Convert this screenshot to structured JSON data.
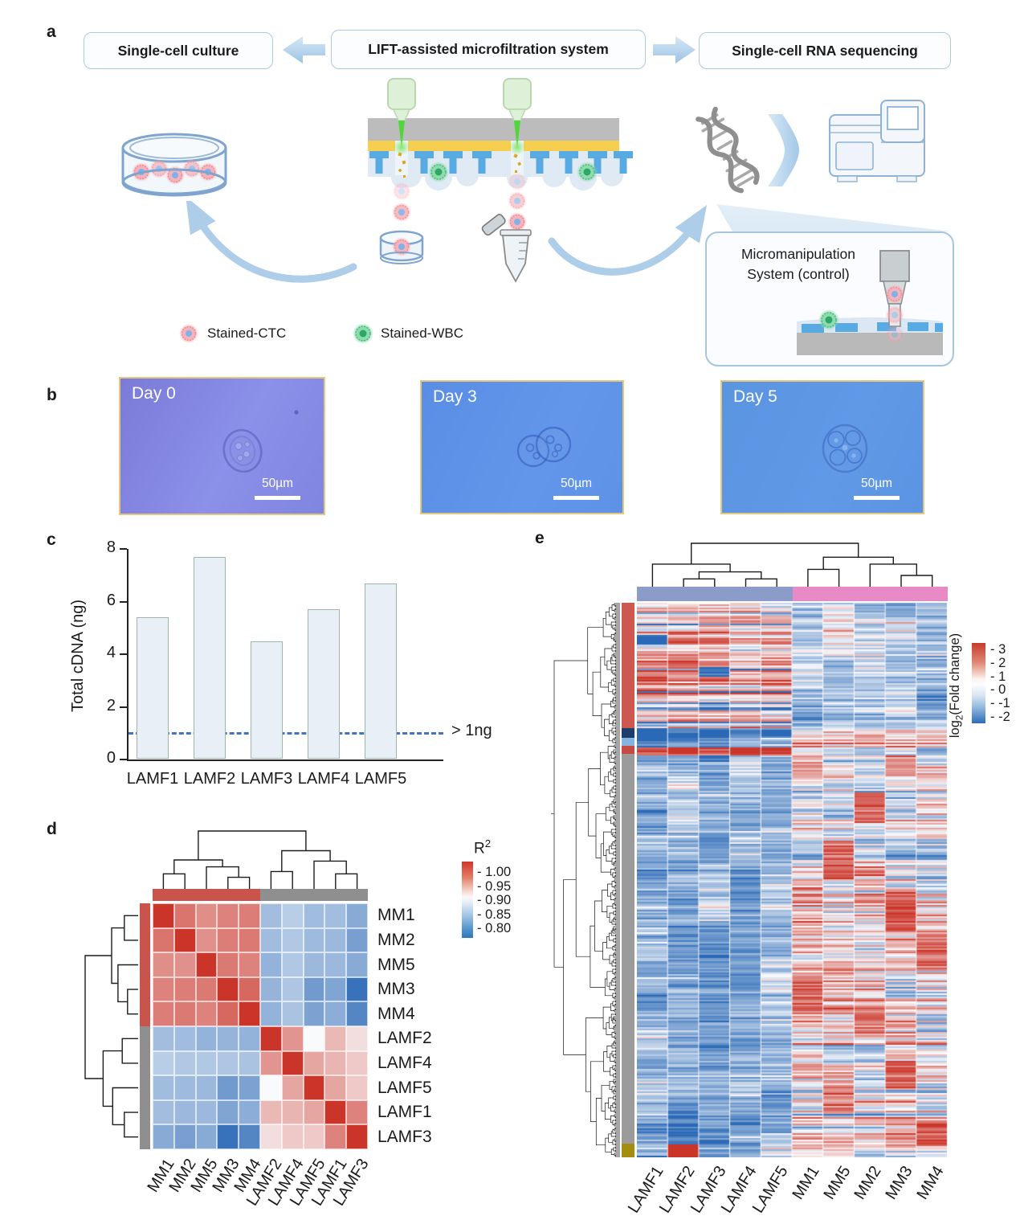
{
  "figure": {
    "panel_labels": {
      "a": "a",
      "b": "b",
      "c": "c",
      "d": "d",
      "e": "e"
    }
  },
  "panel_a": {
    "boxes": [
      "Single-cell culture",
      "LIFT-assisted microfiltration system",
      "Single-cell RNA sequencing"
    ],
    "legend": [
      {
        "label": "Stained-CTC",
        "color": "#f2a0a8"
      },
      {
        "label": "Stained-WBC",
        "color": "#7fd3a2"
      }
    ],
    "inset_title": "Micromanipulation System (control)"
  },
  "panel_b": {
    "images": [
      {
        "label": "Day 0",
        "scalebar": "50µm"
      },
      {
        "label": "Day 3",
        "scalebar": "50µm"
      },
      {
        "label": "Day 5",
        "scalebar": "50µm"
      }
    ]
  },
  "chart_data": [
    {
      "panel": "c",
      "type": "bar",
      "categories": [
        "LAMF1",
        "LAMF2",
        "LAMF3",
        "LAMF4",
        "LAMF5"
      ],
      "values": [
        5.4,
        7.7,
        4.5,
        5.7,
        6.7
      ],
      "ylabel": "Total cDNA (ng)",
      "ylim": [
        0,
        8
      ],
      "yticks": [
        "0",
        "2",
        "4",
        "6",
        "8"
      ],
      "threshold_value": 1,
      "threshold_label": "> 1ng",
      "bar_fill": "#e9eff7",
      "bar_stroke": "#9fb7a9",
      "threshold_color": "#4472c4"
    },
    {
      "panel": "d",
      "type": "heatmap",
      "title": "Sample-sample correlation",
      "rows": [
        "MM1",
        "MM2",
        "MM5",
        "MM3",
        "MM4",
        "LAMF2",
        "LAMF4",
        "LAMF5",
        "LAMF1",
        "LAMF3"
      ],
      "cols": [
        "MM1",
        "MM2",
        "MM5",
        "MM3",
        "MM4",
        "LAMF2",
        "LAMF4",
        "LAMF5",
        "LAMF1",
        "LAMF3"
      ],
      "matrix": [
        [
          1.0,
          0.965,
          0.952,
          0.958,
          0.96,
          0.853,
          0.866,
          0.852,
          0.853,
          0.838
        ],
        [
          0.965,
          1.0,
          0.95,
          0.96,
          0.962,
          0.852,
          0.862,
          0.851,
          0.85,
          0.828
        ],
        [
          0.952,
          0.95,
          1.0,
          0.962,
          0.958,
          0.845,
          0.862,
          0.85,
          0.85,
          0.838
        ],
        [
          0.958,
          0.96,
          0.962,
          1.0,
          0.972,
          0.846,
          0.86,
          0.824,
          0.833,
          0.788
        ],
        [
          0.96,
          0.962,
          0.958,
          0.972,
          1.0,
          0.845,
          0.858,
          0.83,
          0.84,
          0.806
        ],
        [
          0.853,
          0.852,
          0.845,
          0.846,
          0.845,
          1.0,
          0.948,
          0.9,
          0.93,
          0.912
        ],
        [
          0.866,
          0.862,
          0.862,
          0.86,
          0.858,
          0.948,
          1.0,
          0.94,
          0.932,
          0.922
        ],
        [
          0.852,
          0.851,
          0.85,
          0.824,
          0.83,
          0.9,
          0.94,
          1.0,
          0.94,
          0.922
        ],
        [
          0.853,
          0.85,
          0.85,
          0.833,
          0.84,
          0.93,
          0.932,
          0.94,
          1.0,
          0.958
        ],
        [
          0.838,
          0.828,
          0.838,
          0.788,
          0.806,
          0.912,
          0.922,
          0.922,
          0.958,
          1.0
        ]
      ],
      "col_groups": [
        {
          "name": "MM",
          "color": "#c9544c",
          "span": 5
        },
        {
          "name": "LAMF",
          "color": "#8f8f8f",
          "span": 5
        }
      ],
      "row_groups": [
        {
          "name": "MM",
          "color": "#c9544c",
          "span": 5
        },
        {
          "name": "LAMF",
          "color": "#8f8f8f",
          "span": 5
        }
      ],
      "legend": {
        "label_base": "R",
        "label_sup": "2",
        "ticks": [
          "1.00",
          "0.95",
          "0.90",
          "0.85",
          "0.80"
        ]
      },
      "col_tree": {
        "h": 1,
        "c": [
          {
            "h": 0.5,
            "c": [
              {
                "h": 0.26,
                "c": [
                  0,
                  1
                ]
              },
              {
                "h": 0.38,
                "c": [
                  2,
                  {
                    "h": 0.2,
                    "c": [
                      3,
                      4
                    ]
                  }
                ]
              }
            ]
          },
          {
            "h": 0.66,
            "c": [
              {
                "h": 0.3,
                "c": [
                  5,
                  6
                ]
              },
              {
                "h": 0.48,
                "c": [
                  7,
                  {
                    "h": 0.26,
                    "c": [
                      8,
                      9
                    ]
                  }
                ]
              }
            ]
          }
        ]
      },
      "row_tree": {
        "h": 1,
        "c": [
          {
            "h": 0.5,
            "c": [
              {
                "h": 0.26,
                "c": [
                  0,
                  1
                ]
              },
              {
                "h": 0.38,
                "c": [
                  2,
                  {
                    "h": 0.2,
                    "c": [
                      3,
                      4
                    ]
                  }
                ]
              }
            ]
          },
          {
            "h": 0.66,
            "c": [
              {
                "h": 0.3,
                "c": [
                  5,
                  6
                ]
              },
              {
                "h": 0.48,
                "c": [
                  7,
                  {
                    "h": 0.26,
                    "c": [
                      8,
                      9
                    ]
                  }
                ]
              }
            ]
          }
        ]
      }
    },
    {
      "panel": "e",
      "type": "heatmap",
      "title": "Differential expression, log2 fold change",
      "cols": [
        "LAMF1",
        "LAMF2",
        "LAMF3",
        "LAMF4",
        "LAMF5",
        "MM1",
        "MM5",
        "MM2",
        "MM3",
        "MM4"
      ],
      "n_rows": 345,
      "col_groups": [
        {
          "name": "LAMF",
          "color": "#8c9cca",
          "span": 5
        },
        {
          "name": "MM",
          "color": "#e78ac5",
          "span": 5
        }
      ],
      "legend": {
        "label_base": "log",
        "label_sub": "2",
        "label_rest": "(Fold change)",
        "ticks": [
          "3",
          "2",
          "1",
          "0",
          "-1",
          "-2"
        ],
        "range": [
          3.5,
          -2.5
        ]
      },
      "row_segments": [
        {
          "color": "#cd5850",
          "from": 0,
          "to": 0.226
        },
        {
          "color": "#1c3d6e",
          "from": 0.226,
          "to": 0.243
        },
        {
          "color": "#85b4e0",
          "from": 0.243,
          "to": 0.258
        },
        {
          "color": "#c44a42",
          "from": 0.258,
          "to": 0.272
        },
        {
          "color": "#9b9b9b",
          "from": 0.272,
          "to": 0.975
        },
        {
          "color": "#a38e12",
          "from": 0.975,
          "to": 1
        }
      ],
      "row_blocks": [
        {
          "rows": [
            0,
            78
          ],
          "lamf_mu": 1.3,
          "lamf_sd": 0.9,
          "mm_mu": -0.55,
          "mm_sd": 0.35
        },
        {
          "rows": [
            78,
            84
          ],
          "lamf_mu": -2.0,
          "lamf_sd": 0.4,
          "mm_mu": 0.4,
          "mm_sd": 0.5
        },
        {
          "rows": [
            84,
            90
          ],
          "lamf_mu": -0.9,
          "lamf_sd": 0.5,
          "mm_mu": 0.9,
          "mm_sd": 0.5
        },
        {
          "rows": [
            90,
            95
          ],
          "lamf_mu": 2.6,
          "lamf_sd": 0.7,
          "mm_mu": -0.5,
          "mm_sd": 0.3
        },
        {
          "rows": [
            95,
            160
          ],
          "lamf_mu": -0.7,
          "lamf_sd": 0.3,
          "mm_mu": 0.15,
          "mm_sd": 0.6
        },
        {
          "rows": [
            160,
            337
          ],
          "lamf_mu": -0.75,
          "lamf_sd": 0.3,
          "mm_mu": 0.55,
          "mm_sd": 0.7
        },
        {
          "rows": [
            337,
            345
          ],
          "lamf_mu": -0.4,
          "lamf_sd": 0.6,
          "mm_mu": 0.4,
          "mm_sd": 0.7
        }
      ],
      "patches": [
        {
          "col": 5,
          "r0": 232,
          "r1": 252,
          "amp": 2.2
        },
        {
          "col": 6,
          "r0": 148,
          "r1": 172,
          "amp": 2.4
        },
        {
          "col": 6,
          "r0": 300,
          "r1": 318,
          "amp": 1.8
        },
        {
          "col": 7,
          "r0": 118,
          "r1": 137,
          "amp": 2.3
        },
        {
          "col": 7,
          "r0": 252,
          "r1": 268,
          "amp": 2.0
        },
        {
          "col": 8,
          "r0": 178,
          "r1": 204,
          "amp": 2.5
        },
        {
          "col": 8,
          "r0": 95,
          "r1": 108,
          "amp": 1.6
        },
        {
          "col": 8,
          "r0": 285,
          "r1": 302,
          "amp": 2.2
        },
        {
          "col": 9,
          "r0": 206,
          "r1": 228,
          "amp": 2.1
        },
        {
          "col": 9,
          "r0": 322,
          "r1": 338,
          "amp": 2.4
        },
        {
          "col": 0,
          "r0": 20,
          "r1": 26,
          "amp": -2.5
        },
        {
          "col": 2,
          "r0": 40,
          "r1": 46,
          "amp": -2.2
        },
        {
          "col": 1,
          "r0": 337,
          "r1": 345,
          "amp": 3.4
        }
      ],
      "col_tree": {
        "h": 1,
        "c": [
          {
            "h": 0.52,
            "c": [
              0,
              {
                "h": 0.34,
                "c": [
                  {
                    "h": 0.18,
                    "c": [
                      1,
                      2
                    ]
                  },
                  {
                    "h": 0.18,
                    "c": [
                      3,
                      4
                    ]
                  }
                ]
              }
            ]
          },
          {
            "h": 0.68,
            "c": [
              {
                "h": 0.4,
                "c": [
                  5,
                  6
                ]
              },
              {
                "h": 0.52,
                "c": [
                  7,
                  {
                    "h": 0.26,
                    "c": [
                      8,
                      9
                    ]
                  }
                ]
              }
            ]
          }
        ]
      }
    }
  ]
}
